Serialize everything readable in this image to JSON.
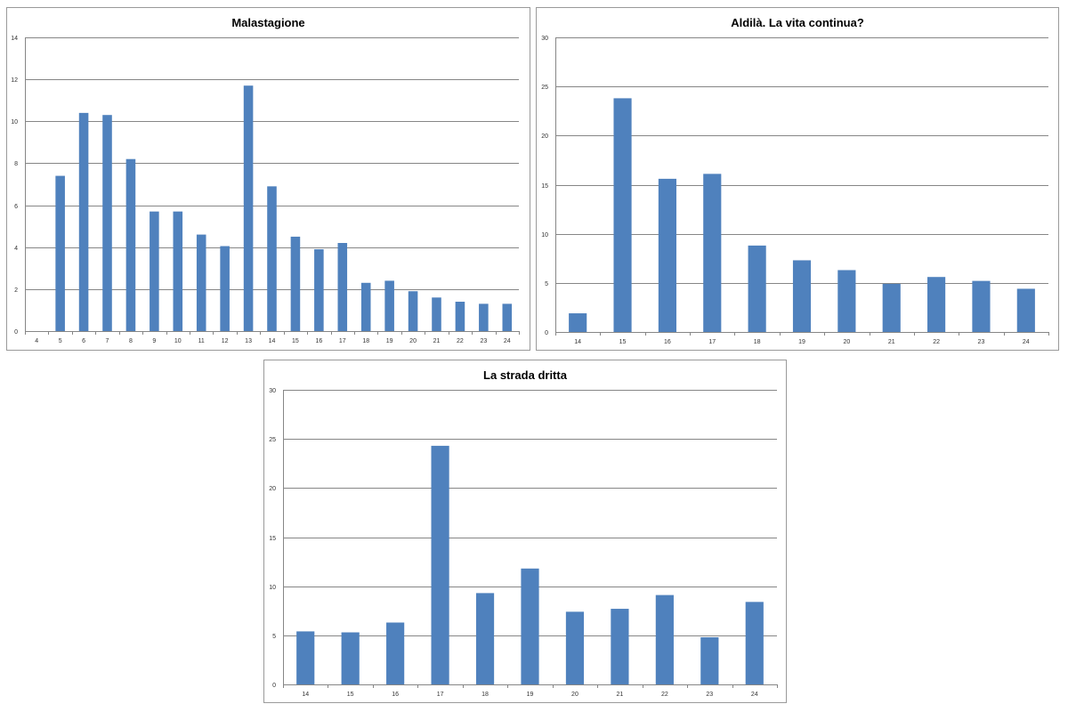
{
  "chart_data": [
    {
      "type": "bar",
      "title": "Malastagione",
      "categories": [
        "4",
        "5",
        "6",
        "7",
        "8",
        "9",
        "10",
        "11",
        "12",
        "13",
        "14",
        "15",
        "16",
        "17",
        "18",
        "19",
        "20",
        "21",
        "22",
        "23",
        "24"
      ],
      "values": [
        0,
        7.4,
        10.4,
        10.3,
        8.2,
        5.7,
        5.7,
        4.6,
        4.05,
        11.7,
        6.9,
        4.5,
        3.9,
        4.2,
        2.3,
        2.4,
        1.9,
        1.6,
        1.4,
        1.3,
        1.3
      ],
      "ylim": [
        0,
        14
      ],
      "yticks": [
        0,
        2,
        4,
        6,
        8,
        10,
        12,
        14
      ],
      "bar_color": "#4f81bd",
      "grid": true,
      "legend": "none"
    },
    {
      "type": "bar",
      "title": "Aldilà. La vita continua?",
      "categories": [
        "14",
        "15",
        "16",
        "17",
        "18",
        "19",
        "20",
        "21",
        "22",
        "23",
        "24"
      ],
      "values": [
        1.9,
        23.8,
        15.6,
        16.1,
        8.8,
        7.3,
        6.3,
        4.9,
        5.6,
        5.2,
        4.4
      ],
      "ylim": [
        0,
        30
      ],
      "yticks": [
        0,
        5,
        10,
        15,
        20,
        25,
        30
      ],
      "bar_color": "#4f81bd",
      "grid": true,
      "legend": "none"
    },
    {
      "type": "bar",
      "title": "La strada dritta",
      "categories": [
        "14",
        "15",
        "16",
        "17",
        "18",
        "19",
        "20",
        "21",
        "22",
        "23",
        "24"
      ],
      "values": [
        5.4,
        5.3,
        6.3,
        24.3,
        9.3,
        11.8,
        7.4,
        7.7,
        9.1,
        4.8,
        8.4
      ],
      "ylim": [
        0,
        30
      ],
      "yticks": [
        0,
        5,
        10,
        15,
        20,
        25,
        30
      ],
      "bar_color": "#4f81bd",
      "grid": true,
      "legend": "none"
    }
  ]
}
